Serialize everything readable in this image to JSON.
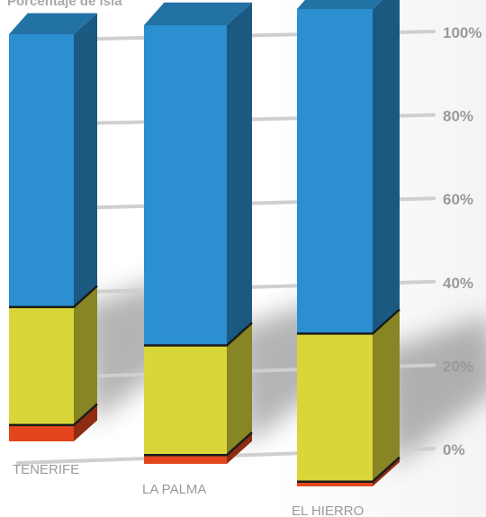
{
  "chart_data": {
    "type": "bar",
    "stacked": true,
    "title": "Porcentaje de isla",
    "categories": [
      "TENERIFE",
      "LA PALMA",
      "EL HIERRO"
    ],
    "series": [
      {
        "color": "#e5451c",
        "values": [
          4,
          2,
          1
        ]
      },
      {
        "color": "#d9d63a",
        "values": [
          29,
          25,
          31
        ]
      },
      {
        "color": "#2b8fd0",
        "values": [
          67,
          73,
          68
        ]
      }
    ],
    "ylim": [
      0,
      100
    ],
    "yticks": [
      "0%",
      "20%",
      "40%",
      "60%",
      "80%",
      "100%"
    ],
    "grid": true,
    "legend": "none"
  }
}
